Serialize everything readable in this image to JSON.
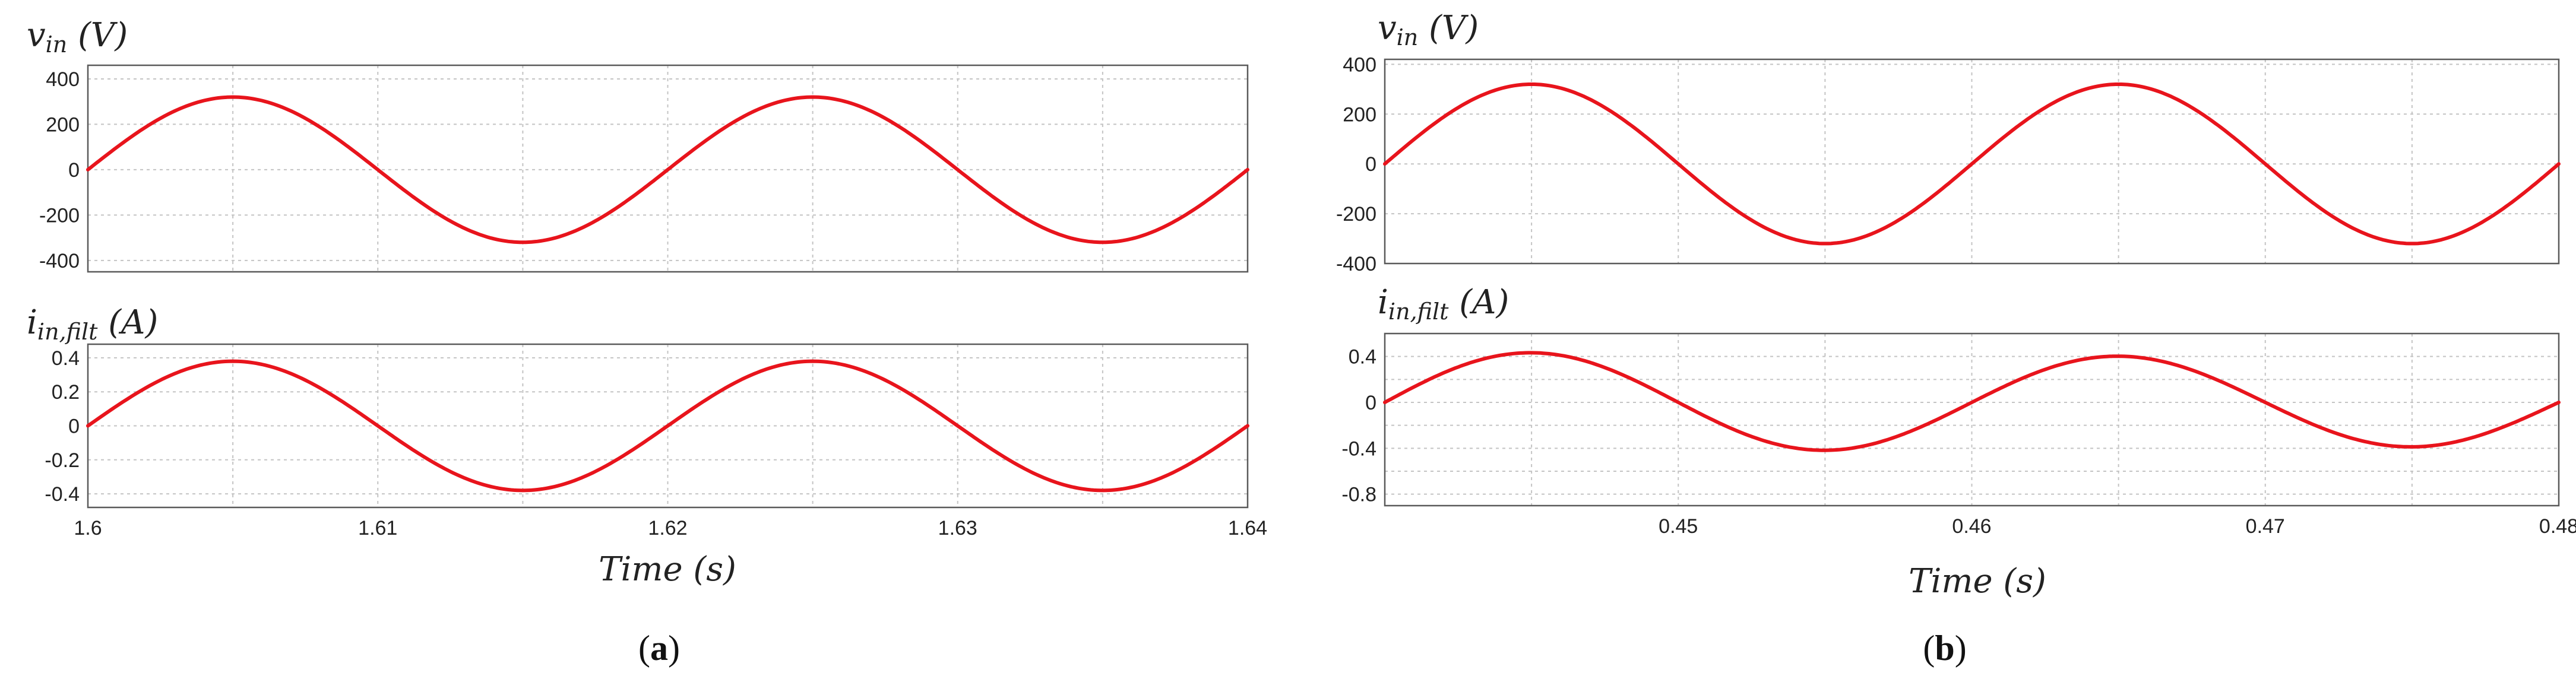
{
  "colors": {
    "trace": "#e8141c"
  },
  "captions": [
    {
      "open": "(",
      "letter": "a",
      "close": ")"
    },
    {
      "open": "(",
      "letter": "b",
      "close": ")"
    }
  ],
  "chart_data": [
    {
      "id": "a-vin",
      "type": "line",
      "title": {
        "main": "v",
        "sub": "in",
        "unit": " (V)"
      },
      "xlim": [
        1.6,
        1.64
      ],
      "ylim": [
        -450,
        460
      ],
      "yticks": [
        400,
        200,
        0,
        -200,
        -400
      ],
      "ytick_labels": [
        "400",
        "200",
        "0",
        "-200",
        "-400"
      ],
      "xticks": [
        1.6,
        1.61,
        1.62,
        1.63,
        1.64
      ],
      "xgrid_minor": [
        1.605,
        1.615,
        1.625,
        1.635
      ],
      "grid": true,
      "series": [
        {
          "function": "sine",
          "amplitude": 320,
          "frequency_hz": 50,
          "phase_ref_t": 1.6,
          "amplitude_end": 320,
          "samples": 400
        }
      ]
    },
    {
      "id": "a-iin",
      "type": "line",
      "title": {
        "main": "i",
        "sub": "in,filt",
        "unit": " (A)"
      },
      "xlabel": "Time (s)",
      "xlim": [
        1.6,
        1.64
      ],
      "ylim": [
        -0.48,
        0.48
      ],
      "yticks": [
        0.4,
        0.2,
        0,
        -0.2,
        -0.4
      ],
      "ytick_labels": [
        "0.4",
        "0.2",
        "0",
        "-0.2",
        "-0.4"
      ],
      "xticks": [
        1.6,
        1.61,
        1.62,
        1.63,
        1.64
      ],
      "xtick_labels": [
        "1.6",
        "1.61",
        "1.62",
        "1.63",
        "1.64"
      ],
      "xgrid_minor": [
        1.605,
        1.615,
        1.625,
        1.635
      ],
      "grid": true,
      "series": [
        {
          "function": "sine",
          "amplitude": 0.38,
          "frequency_hz": 50,
          "phase_ref_t": 1.6,
          "amplitude_end": 0.38,
          "samples": 400
        }
      ]
    },
    {
      "id": "b-vin",
      "type": "line",
      "title": {
        "main": "v",
        "sub": "in",
        "unit": " (V)"
      },
      "xlim": [
        0.44,
        0.48
      ],
      "ylim": [
        -400,
        420
      ],
      "yticks": [
        400,
        200,
        0,
        -200,
        -400
      ],
      "ytick_labels": [
        "400",
        "200",
        "0",
        "-200",
        "-400"
      ],
      "xticks": [
        0.45,
        0.46,
        0.47,
        0.48
      ],
      "xgrid_minor": [
        0.445,
        0.455,
        0.465,
        0.475
      ],
      "grid": true,
      "series": [
        {
          "function": "sine",
          "amplitude": 320,
          "frequency_hz": 50,
          "phase_ref_t": 0.44,
          "amplitude_end": 320,
          "samples": 400
        }
      ]
    },
    {
      "id": "b-iin",
      "type": "line",
      "title": {
        "main": "i",
        "sub": "in,filt",
        "unit": " (A)"
      },
      "xlabel": "Time (s)",
      "xlim": [
        0.44,
        0.48
      ],
      "ylim": [
        -0.9,
        0.6
      ],
      "yticks": [
        0.4,
        0,
        -0.4,
        -0.8
      ],
      "ytick_labels": [
        "0.4",
        "0",
        "-0.4",
        "-0.8"
      ],
      "yminor": [
        0.2,
        -0.2,
        -0.6
      ],
      "xticks": [
        0.45,
        0.46,
        0.47,
        0.48
      ],
      "xtick_labels": [
        "0.45",
        "0.46",
        "0.47",
        "0.48"
      ],
      "xgrid_minor": [
        0.445,
        0.455,
        0.465,
        0.475
      ],
      "grid": true,
      "series": [
        {
          "function": "sine",
          "amplitude": 0.44,
          "frequency_hz": 50,
          "phase_ref_t": 0.44,
          "amplitude_end": 0.38,
          "samples": 400
        }
      ]
    }
  ]
}
